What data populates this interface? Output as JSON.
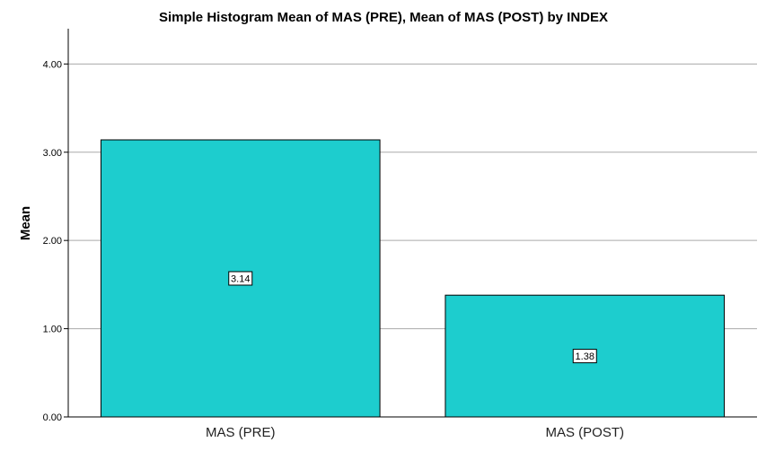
{
  "chart_data": {
    "type": "bar",
    "title": "Simple Histogram Mean of MAS (PRE), Mean of MAS (POST) by INDEX",
    "xlabel": "",
    "ylabel": "Mean",
    "categories": [
      "MAS (PRE)",
      "MAS (POST)"
    ],
    "values": [
      3.14,
      1.38
    ],
    "data_labels": [
      "3.14",
      "1.38"
    ],
    "yticks": [
      "0.00",
      "1.00",
      "2.00",
      "3.00",
      "4.00"
    ],
    "ylim": [
      0,
      4.4
    ],
    "grid": true,
    "legend": "none",
    "bar_color": "#1dcdce",
    "bar_stroke": "#000000",
    "grid_color": "#aaaaaa"
  }
}
